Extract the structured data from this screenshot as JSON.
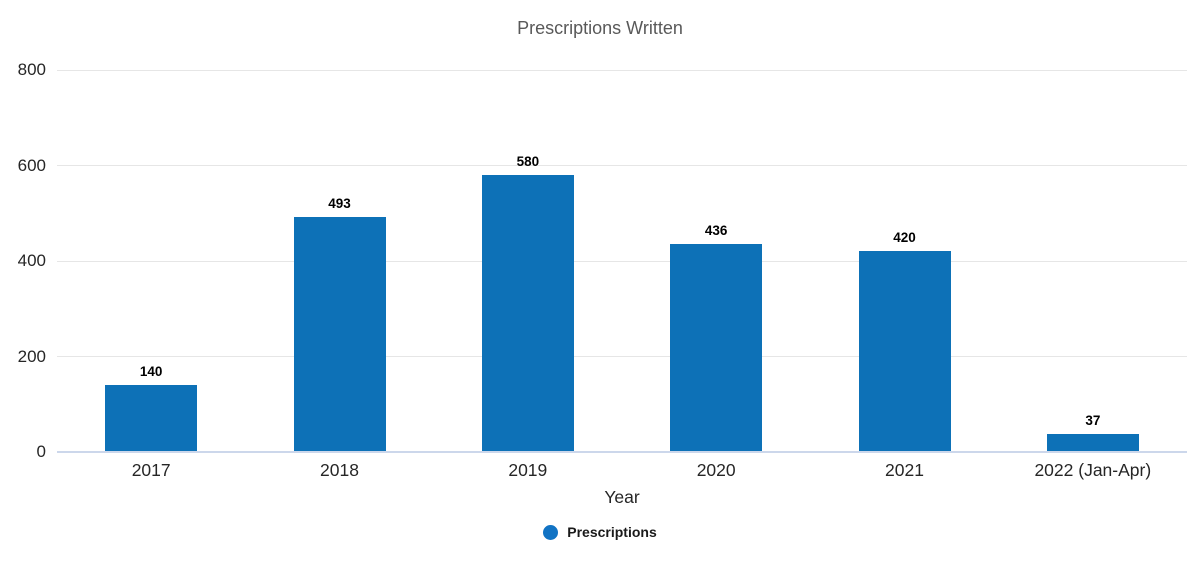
{
  "chart_data": {
    "type": "bar",
    "title": "Prescriptions Written",
    "categories": [
      "2017",
      "2018",
      "2019",
      "2020",
      "2021",
      "2022 (Jan-Apr)"
    ],
    "series": [
      {
        "name": "Prescriptions",
        "values": [
          140,
          493,
          580,
          436,
          420,
          37
        ]
      }
    ],
    "data_labels": [
      "140",
      "493",
      "580",
      "436",
      "420",
      "37"
    ],
    "xlabel": "Year",
    "ylabel": "",
    "ylim": [
      0,
      800
    ],
    "yticks": [
      0,
      200,
      400,
      600,
      800
    ],
    "grid": true,
    "legend_position": "bottom",
    "legend": [
      {
        "label": "Prescriptions",
        "color": "#1173c4"
      }
    ],
    "colors": {
      "bar": "#0d71b7",
      "gridline": "#e6e6e6",
      "axis_line": "#ccd7eb",
      "title": "#595959",
      "tick_label": "#262626",
      "data_label": "#000000"
    }
  }
}
